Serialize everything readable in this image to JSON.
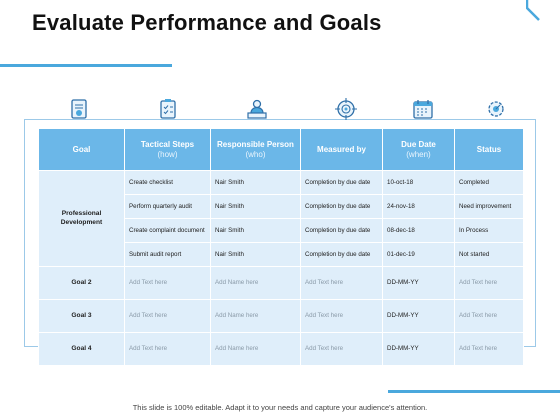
{
  "title": "Evaluate Performance and Goals",
  "footer": "This slide is 100% editable. Adapt it to your needs and capture your audience's attention.",
  "accent_color": "#4aa8dd",
  "header_color": "#6bb7e8",
  "cell_color": "#dfeefa",
  "icons": [
    "goal-document-icon",
    "checklist-clipboard-icon",
    "worker-at-desk-icon",
    "target-crosshair-icon",
    "calendar-icon",
    "gear-status-icon"
  ],
  "headers": {
    "goal": "Goal",
    "steps": "Tactical Steps",
    "steps_sub": "(how)",
    "person": "Responsible Person",
    "person_sub": "(who)",
    "measured": "Measured by",
    "due": "Due Date",
    "due_sub": "(when)",
    "status": "Status"
  },
  "goal1": {
    "label": "Professional Development",
    "tasks": [
      {
        "step": "Create checklist",
        "person": "Nair Smith",
        "measured": "Completion by due date",
        "due": "10-oct-18",
        "status": "Completed"
      },
      {
        "step": "Perform quarterly audit",
        "person": "Nair Smith",
        "measured": "Completion by due date",
        "due": "24-nov-18",
        "status": "Need improvement"
      },
      {
        "step": "Create complaint document",
        "person": "Nair Smith",
        "measured": "Completion by due date",
        "due": "08-dec-18",
        "status": "In Process"
      },
      {
        "step": "Submit audit report",
        "person": "Nair Smith",
        "measured": "Completion by due date",
        "due": "01-dec-19",
        "status": "Not started"
      }
    ]
  },
  "other_goals": [
    {
      "label": "Goal 2",
      "step": "Add Text here",
      "person": "Add Name here",
      "measured": "Add Text here",
      "due": "DD-MM-YY",
      "status": "Add Text here"
    },
    {
      "label": "Goal 3",
      "step": "Add Text here",
      "person": "Add Name here",
      "measured": "Add Text here",
      "due": "DD-MM-YY",
      "status": "Add Text here"
    },
    {
      "label": "Goal 4",
      "step": "Add Text here",
      "person": "Add Name here",
      "measured": "Add Text here",
      "due": "DD-MM-YY",
      "status": "Add Text here"
    }
  ]
}
